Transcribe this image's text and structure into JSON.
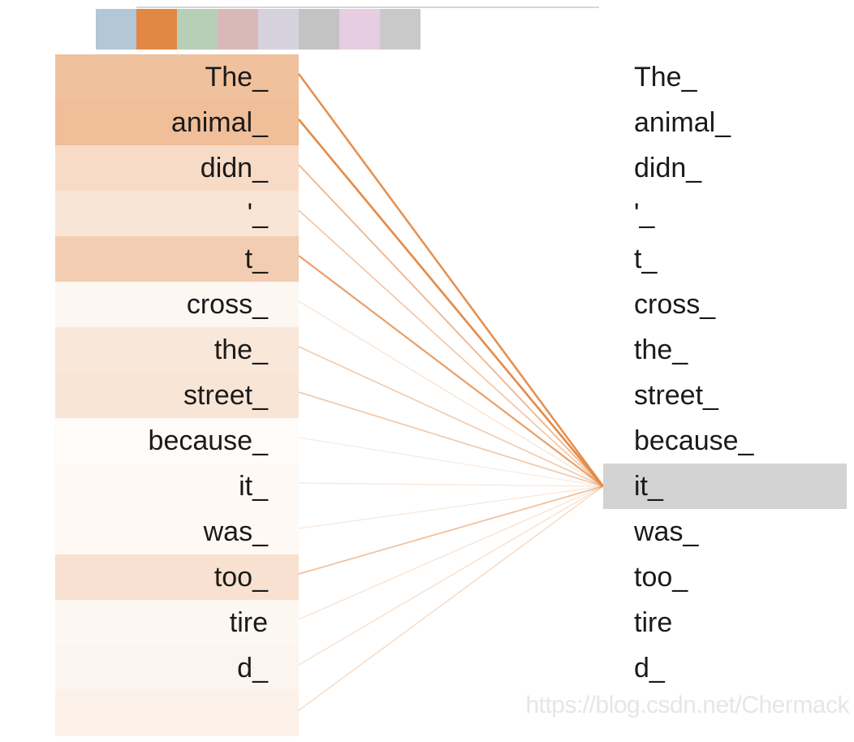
{
  "heads": {
    "colors": [
      "#b3c7d6",
      "#e38844",
      "#b7cfb6",
      "#dab8b8",
      "#d5d2de",
      "#c3c3c3",
      "#e6cde2",
      "#c9c9c9"
    ],
    "active_index": 1
  },
  "tokens": [
    "The_",
    "animal_",
    "didn_",
    "'_",
    "t_",
    "cross_",
    "the_",
    "street_",
    "because_",
    "it_",
    "was_",
    "too_",
    "tire",
    "d_",
    ""
  ],
  "query_index": 9,
  "attention_weights": [
    0.52,
    0.55,
    0.3,
    0.22,
    0.42,
    0.07,
    0.2,
    0.22,
    0.03,
    0.05,
    0.05,
    0.25,
    0.07,
    0.09,
    0.12
  ],
  "accent_color": "#e38844",
  "selected_row_color": "#d3d3d3",
  "watermark": "https://blog.csdn.net/Chermack"
}
